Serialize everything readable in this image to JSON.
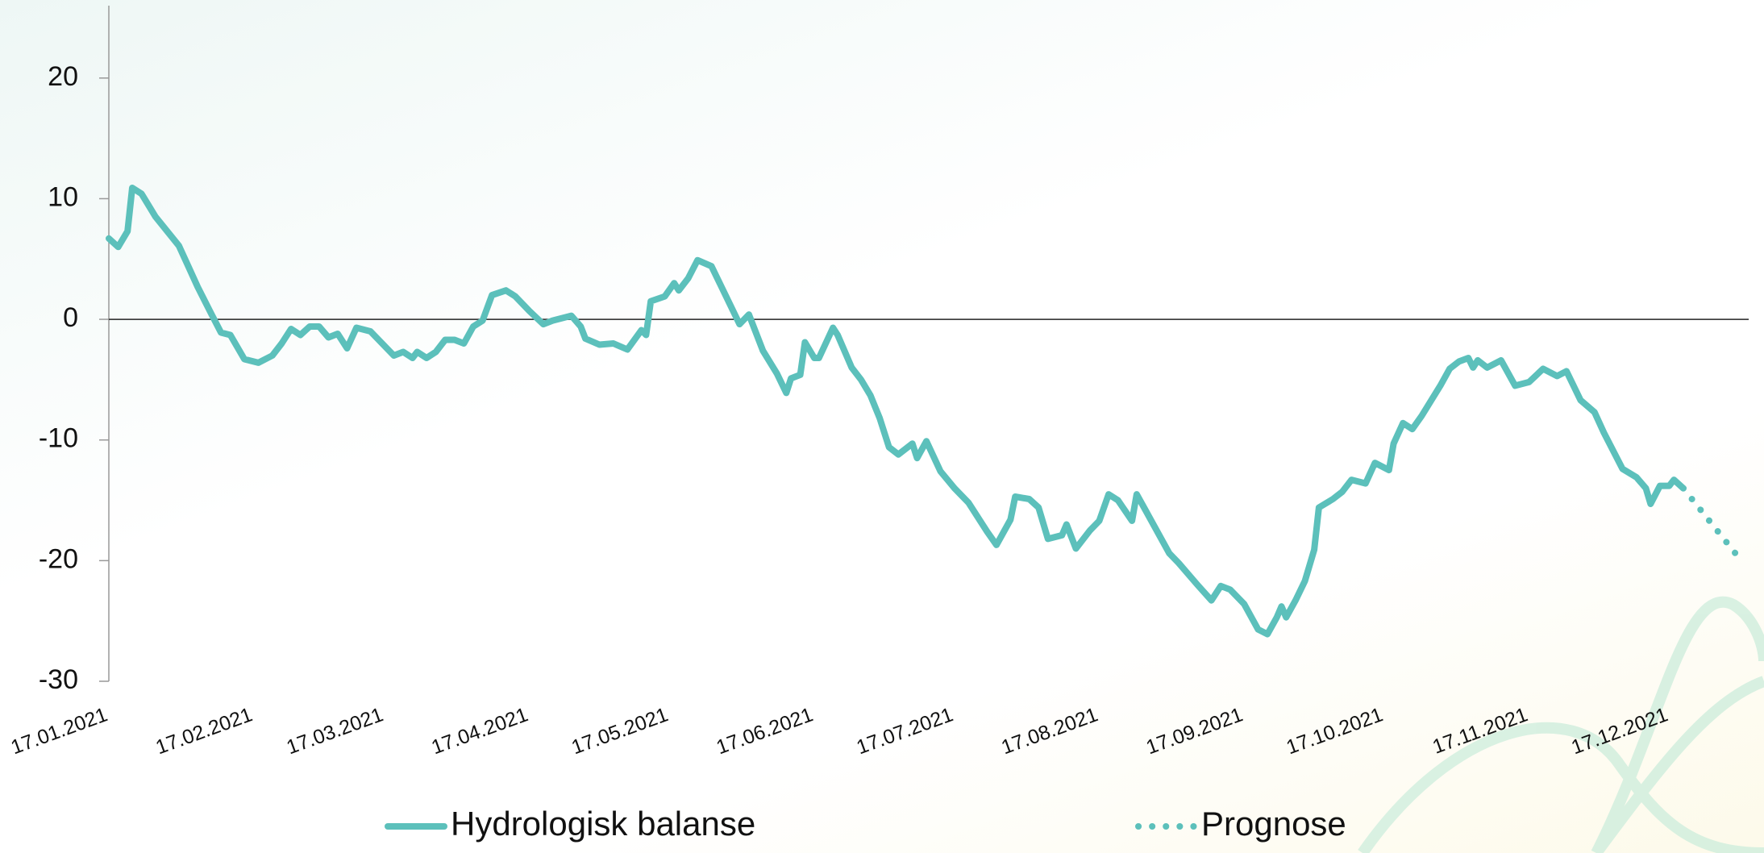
{
  "chart_data": {
    "type": "line",
    "x": [
      "2021-01-17",
      "2021-01-19",
      "2021-01-21",
      "2021-01-22",
      "2021-01-24",
      "2021-01-27",
      "2021-02-01",
      "2021-02-03",
      "2021-02-05",
      "2021-02-08",
      "2021-02-10",
      "2021-02-12",
      "2021-02-15",
      "2021-02-18",
      "2021-02-21",
      "2021-02-23",
      "2021-02-25",
      "2021-02-27",
      "2021-03-01",
      "2021-03-03",
      "2021-03-05",
      "2021-03-07",
      "2021-03-09",
      "2021-03-11",
      "2021-03-14",
      "2021-03-17",
      "2021-03-19",
      "2021-03-21",
      "2021-03-23",
      "2021-03-24",
      "2021-03-26",
      "2021-03-28",
      "2021-03-30",
      "2021-04-01",
      "2021-04-03",
      "2021-04-05",
      "2021-04-07",
      "2021-04-09",
      "2021-04-12",
      "2021-04-14",
      "2021-04-17",
      "2021-04-20",
      "2021-04-22",
      "2021-04-26",
      "2021-04-28",
      "2021-04-29",
      "2021-05-02",
      "2021-05-05",
      "2021-05-08",
      "2021-05-11",
      "2021-05-12",
      "2021-05-13",
      "2021-05-16",
      "2021-05-18",
      "2021-05-19",
      "2021-05-21",
      "2021-05-23",
      "2021-05-26",
      "2021-05-29",
      "2021-06-01",
      "2021-06-03",
      "2021-06-06",
      "2021-06-09",
      "2021-06-11",
      "2021-06-12",
      "2021-06-14",
      "2021-06-15",
      "2021-06-17",
      "2021-06-18",
      "2021-06-21",
      "2021-06-22",
      "2021-06-25",
      "2021-06-27",
      "2021-06-29",
      "2021-07-01",
      "2021-07-03",
      "2021-07-05",
      "2021-07-08",
      "2021-07-09",
      "2021-07-11",
      "2021-07-14",
      "2021-07-17",
      "2021-07-20",
      "2021-07-24",
      "2021-07-26",
      "2021-07-29",
      "2021-07-30",
      "2021-08-02",
      "2021-08-04",
      "2021-08-06",
      "2021-08-09",
      "2021-08-10",
      "2021-08-12",
      "2021-08-15",
      "2021-08-17",
      "2021-08-19",
      "2021-08-21",
      "2021-08-24",
      "2021-08-25",
      "2021-08-27",
      "2021-09-01",
      "2021-09-03",
      "2021-09-07",
      "2021-09-10",
      "2021-09-12",
      "2021-09-14",
      "2021-09-17",
      "2021-09-20",
      "2021-09-22",
      "2021-09-24",
      "2021-09-25",
      "2021-09-26",
      "2021-09-28",
      "2021-09-30",
      "2021-10-02",
      "2021-10-03",
      "2021-10-06",
      "2021-10-08",
      "2021-10-10",
      "2021-10-13",
      "2021-10-15",
      "2021-10-18",
      "2021-10-19",
      "2021-10-21",
      "2021-10-23",
      "2021-10-25",
      "2021-10-29",
      "2021-10-31",
      "2021-11-02",
      "2021-11-04",
      "2021-11-05",
      "2021-11-06",
      "2021-11-08",
      "2021-11-11",
      "2021-11-14",
      "2021-11-17",
      "2021-11-20",
      "2021-11-23",
      "2021-11-25",
      "2021-11-28",
      "2021-12-01",
      "2021-12-03",
      "2021-12-07",
      "2021-12-10",
      "2021-12-12",
      "2021-12-13",
      "2021-12-15",
      "2021-12-17",
      "2021-12-18",
      "2021-12-20",
      "2022-01-01"
    ],
    "series": [
      {
        "name": "Hydrologisk balanse",
        "color": "#5cc0bb",
        "style": "solid",
        "values": [
          6.7,
          6.0,
          7.3,
          10.9,
          10.4,
          8.5,
          6.1,
          4.4,
          2.7,
          0.4,
          -1.1,
          -1.3,
          -3.3,
          -3.6,
          -3.0,
          -2.0,
          -0.8,
          -1.3,
          -0.6,
          -0.6,
          -1.5,
          -1.2,
          -2.4,
          -0.7,
          -1.0,
          -2.2,
          -3.0,
          -2.7,
          -3.2,
          -2.7,
          -3.2,
          -2.7,
          -1.7,
          -1.7,
          -2.0,
          -0.6,
          -0.1,
          2.0,
          2.4,
          1.9,
          0.7,
          -0.4,
          -0.1,
          0.3,
          -0.6,
          -1.6,
          -2.1,
          -2.0,
          -2.5,
          -0.9,
          -1.3,
          1.5,
          1.9,
          3.0,
          2.4,
          3.4,
          4.9,
          4.4,
          2.0,
          -0.4,
          0.4,
          -2.6,
          -4.5,
          -6.1,
          -4.9,
          -4.6,
          -1.9,
          -3.2,
          -3.2,
          -0.7,
          -1.3,
          -4.0,
          -5.0,
          -6.3,
          -8.2,
          -10.6,
          -11.2,
          -10.3,
          -11.5,
          -10.1,
          -12.6,
          -14.0,
          -15.2,
          -17.6,
          -18.7,
          -16.6,
          -14.7,
          -14.9,
          -15.6,
          -18.2,
          -17.9,
          -17.0,
          -19.0,
          -17.5,
          -16.7,
          -14.5,
          -15.0,
          -16.7,
          -14.5,
          -15.9,
          -19.4,
          -20.2,
          -22.0,
          -23.3,
          -22.1,
          -22.4,
          -23.6,
          -25.7,
          -26.1,
          -24.7,
          -23.8,
          -24.7,
          -23.3,
          -21.7,
          -19.1,
          -15.6,
          -14.9,
          -14.3,
          -13.3,
          -13.6,
          -11.9,
          -12.5,
          -10.3,
          -8.6,
          -9.1,
          -8.0,
          -5.5,
          -4.1,
          -3.5,
          -3.2,
          -4.0,
          -3.4,
          -4.0,
          -3.4,
          -5.5,
          -5.2,
          -4.1,
          -4.7,
          -4.3,
          -6.7,
          -7.7,
          -9.4,
          -12.4,
          -13.1,
          -14.0,
          -15.3,
          -13.8,
          -13.8,
          -13.3,
          -14.0,
          null
        ]
      },
      {
        "name": "Prognose",
        "color": "#5cc0bb",
        "style": "dotted",
        "values": [
          null,
          null,
          null,
          null,
          null,
          null,
          null,
          null,
          null,
          null,
          null,
          null,
          null,
          null,
          null,
          null,
          null,
          null,
          null,
          null,
          null,
          null,
          null,
          null,
          null,
          null,
          null,
          null,
          null,
          null,
          null,
          null,
          null,
          null,
          null,
          null,
          null,
          null,
          null,
          null,
          null,
          null,
          null,
          null,
          null,
          null,
          null,
          null,
          null,
          null,
          null,
          null,
          null,
          null,
          null,
          null,
          null,
          null,
          null,
          null,
          null,
          null,
          null,
          null,
          null,
          null,
          null,
          null,
          null,
          null,
          null,
          null,
          null,
          null,
          null,
          null,
          null,
          null,
          null,
          null,
          null,
          null,
          null,
          null,
          null,
          null,
          null,
          null,
          null,
          null,
          null,
          null,
          null,
          null,
          null,
          null,
          null,
          null,
          null,
          null,
          null,
          null,
          null,
          null,
          null,
          null,
          null,
          null,
          null,
          null,
          null,
          null,
          null,
          null,
          null,
          null,
          null,
          null,
          null,
          null,
          null,
          null,
          null,
          null,
          null,
          null,
          null,
          null,
          null,
          null,
          null,
          null,
          null,
          null,
          null,
          null,
          null,
          null,
          null,
          null,
          null,
          null,
          null,
          null,
          null,
          null,
          null,
          null,
          null,
          -14.0,
          -19.8
        ]
      }
    ],
    "xlim": [
      "2021-01-17",
      "2022-01-03"
    ],
    "xticks": [
      {
        "value": "2021-01-17",
        "label": "17.01.2021"
      },
      {
        "value": "2021-02-17",
        "label": "17.02.2021"
      },
      {
        "value": "2021-03-17",
        "label": "17.03.2021"
      },
      {
        "value": "2021-04-17",
        "label": "17.04.2021"
      },
      {
        "value": "2021-05-17",
        "label": "17.05.2021"
      },
      {
        "value": "2021-06-17",
        "label": "17.06.2021"
      },
      {
        "value": "2021-07-17",
        "label": "17.07.2021"
      },
      {
        "value": "2021-08-17",
        "label": "17.08.2021"
      },
      {
        "value": "2021-09-17",
        "label": "17.09.2021"
      },
      {
        "value": "2021-10-17",
        "label": "17.10.2021"
      },
      {
        "value": "2021-11-17",
        "label": "17.11.2021"
      },
      {
        "value": "2021-12-17",
        "label": "17.12.2021"
      }
    ],
    "ylim": [
      -30,
      26
    ],
    "yticks": [
      -30,
      -20,
      -10,
      0,
      10,
      20
    ],
    "grid": false,
    "legend": "bottom"
  }
}
